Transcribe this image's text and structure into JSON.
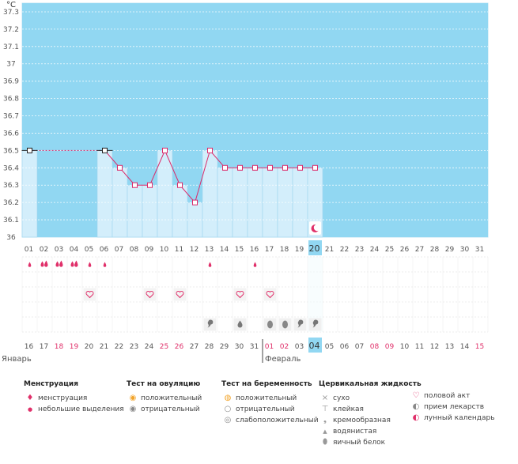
{
  "chart_data": {
    "type": "line",
    "unit_label": "°C",
    "y_ticks": [
      "37.3",
      "37.2",
      "37.1",
      "37",
      "36.9",
      "36.8",
      "36.7",
      "36.6",
      "36.5",
      "36.4",
      "36.3",
      "36.2",
      "36.1",
      "36"
    ],
    "ylim": [
      36.0,
      37.35
    ],
    "cycle_days": [
      "01",
      "02",
      "03",
      "04",
      "05",
      "06",
      "07",
      "08",
      "09",
      "10",
      "11",
      "12",
      "13",
      "14",
      "15",
      "16",
      "17",
      "18",
      "19",
      "20",
      "21",
      "22",
      "23",
      "24",
      "25",
      "26",
      "27",
      "28",
      "29",
      "30",
      "31"
    ],
    "temperatures": [
      36.5,
      null,
      null,
      null,
      null,
      36.5,
      36.4,
      36.3,
      36.3,
      36.5,
      36.3,
      36.2,
      36.5,
      36.4,
      36.4,
      36.4,
      36.4,
      36.4,
      36.4,
      36.4,
      null,
      null,
      null,
      null,
      null,
      null,
      null,
      null,
      null,
      null,
      null
    ],
    "interpolated_segment": {
      "from_day": 1,
      "to_day": 6,
      "value": 36.5
    },
    "highlight_day": "20",
    "calendar_dates": [
      "16",
      "17",
      "18",
      "19",
      "20",
      "21",
      "22",
      "23",
      "24",
      "25",
      "26",
      "27",
      "28",
      "29",
      "30",
      "31",
      "01",
      "02",
      "03",
      "04",
      "05",
      "06",
      "07",
      "08",
      "09",
      "10",
      "11",
      "12",
      "13",
      "14",
      "15"
    ],
    "red_dates_idx": [
      2,
      3,
      9,
      10,
      16,
      17,
      23,
      24,
      30
    ],
    "highlight_date_idx": 19,
    "month_left": "Январь",
    "month_right": "Февраль",
    "month_split_idx": 16,
    "menstruation": [
      {
        "day": 1,
        "icon": "spotting"
      },
      {
        "day": 2,
        "icon": "menstruation"
      },
      {
        "day": 3,
        "icon": "menstruation"
      },
      {
        "day": 4,
        "icon": "menstruation"
      },
      {
        "day": 5,
        "icon": "spotting"
      },
      {
        "day": 6,
        "icon": "spotting"
      },
      {
        "day": 13,
        "icon": "spotting"
      },
      {
        "day": 16,
        "icon": "spotting"
      }
    ],
    "intercourse_days": [
      5,
      9,
      11,
      15,
      17
    ],
    "cervical": [
      {
        "day": 13,
        "type": "creamy"
      },
      {
        "day": 15,
        "type": "watery"
      },
      {
        "day": 17,
        "type": "eggwhite"
      },
      {
        "day": 18,
        "type": "eggwhite"
      },
      {
        "day": 19,
        "type": "creamy"
      },
      {
        "day": 20,
        "type": "creamy"
      }
    ],
    "lunar_day": 20
  },
  "legend": {
    "menstruation": {
      "title": "Менструация",
      "items": [
        "менструация",
        "небольшие выделения"
      ]
    },
    "ovulation_test": {
      "title": "Тест на овуляцию",
      "items": [
        "положительный",
        "отрицательный"
      ]
    },
    "pregnancy_test": {
      "title": "Тест на беременность",
      "items": [
        "положительный",
        "отрицательный",
        "слабоположительный"
      ]
    },
    "cervical_fluid": {
      "title": "Цервикальная жидкость",
      "items": [
        "сухо",
        "клейкая",
        "кремообразная",
        "водянистая",
        "яичный белок"
      ]
    },
    "other": {
      "items": [
        "половой акт",
        "прием лекарств",
        "лунный календарь"
      ]
    }
  },
  "colors": {
    "sky": "#91d7f2",
    "bar": "#d3eefb",
    "bar_line": "#9fd6ef",
    "line": "#dc2a6a",
    "accent": "#e0306a",
    "highlight": "#91d7f2"
  }
}
